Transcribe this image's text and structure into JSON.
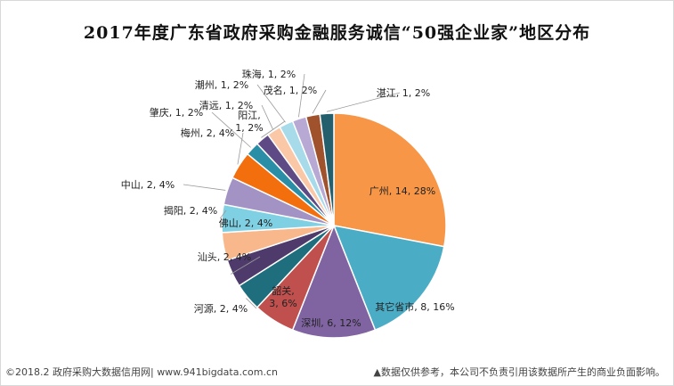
{
  "chart_data": {
    "type": "pie",
    "title": "2017年度广东省政府采购金融服务诚信“50强企业家”地区分布",
    "slices": [
      {
        "name": "广州",
        "value": 14,
        "percent": "28%",
        "color": "#F79646"
      },
      {
        "name": "其它省市",
        "value": 8,
        "percent": "16%",
        "color": "#4BACC6"
      },
      {
        "name": "深圳",
        "value": 6,
        "percent": "12%",
        "color": "#8064A2"
      },
      {
        "name": "韶关",
        "value": 3,
        "percent": "6%",
        "color": "#C0504D"
      },
      {
        "name": "河源",
        "value": 2,
        "percent": "4%",
        "color": "#1F6E7E"
      },
      {
        "name": "汕头",
        "value": 2,
        "percent": "4%",
        "color": "#4F3B6B"
      },
      {
        "name": "佛山",
        "value": 2,
        "percent": "4%",
        "color": "#F9B88B"
      },
      {
        "name": "揭阳",
        "value": 2,
        "percent": "4%",
        "color": "#7FD0E3"
      },
      {
        "name": "中山",
        "value": 2,
        "percent": "4%",
        "color": "#A392C4"
      },
      {
        "name": "梅州",
        "value": 2,
        "percent": "4%",
        "color": "#F36F0E"
      },
      {
        "name": "肇庆",
        "value": 1,
        "percent": "2%",
        "color": "#2A8FA6"
      },
      {
        "name": "阳江",
        "value": 1,
        "percent": "2%",
        "color": "#5E4A84"
      },
      {
        "name": "清远",
        "value": 1,
        "percent": "2%",
        "color": "#FAC8A6"
      },
      {
        "name": "潮州",
        "value": 1,
        "percent": "2%",
        "color": "#A7DBEA"
      },
      {
        "name": "珠海",
        "value": 1,
        "percent": "2%",
        "color": "#B8A9D4"
      },
      {
        "name": "茂名",
        "value": 1,
        "percent": "2%",
        "color": "#A0522D"
      },
      {
        "name": "湛江",
        "value": 1,
        "percent": "2%",
        "color": "#235F6D"
      }
    ]
  },
  "footer": {
    "left": "©2018.2 政府采购大数据信用网| www.941bigdata.com.cn",
    "right": "▲数据仅供参考，本公司不负责引用该数据所产生的商业负面影响。"
  }
}
